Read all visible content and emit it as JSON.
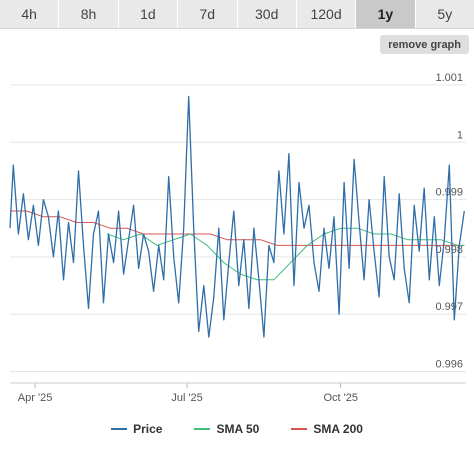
{
  "tabs": [
    {
      "label": "4h",
      "active": false
    },
    {
      "label": "8h",
      "active": false
    },
    {
      "label": "1d",
      "active": false
    },
    {
      "label": "7d",
      "active": false
    },
    {
      "label": "30d",
      "active": false
    },
    {
      "label": "120d",
      "active": false
    },
    {
      "label": "1y",
      "active": true
    },
    {
      "label": "5y",
      "active": false
    }
  ],
  "remove_graph_label": "remove graph",
  "colors": {
    "price": "#2f6ea8",
    "sma50": "#3dbe7a",
    "sma200": "#d9534f",
    "grid": "#e6e6e6"
  },
  "chart_data": {
    "type": "line",
    "ylim": [
      0.9958,
      1.0014
    ],
    "y_ticks": [
      {
        "value": 1.001,
        "label": "1.001"
      },
      {
        "value": 1.0,
        "label": "1"
      },
      {
        "value": 0.999,
        "label": "0.999"
      },
      {
        "value": 0.998,
        "label": "0.998"
      },
      {
        "value": 0.997,
        "label": "0.997"
      },
      {
        "value": 0.996,
        "label": "0.996"
      }
    ],
    "x_range": [
      "2025-03-17",
      "2025-12-15"
    ],
    "x_ticks": [
      {
        "date": "2025-04-01",
        "label": "Apr '25"
      },
      {
        "date": "2025-07-01",
        "label": "Jul '25"
      },
      {
        "date": "2025-10-01",
        "label": "Oct '25"
      }
    ],
    "legend": [
      "Price",
      "SMA 50",
      "SMA 200"
    ],
    "series": [
      {
        "name": "Price",
        "x": [
          "2025-03-17",
          "2025-03-19",
          "2025-03-22",
          "2025-03-25",
          "2025-03-28",
          "2025-03-31",
          "2025-04-03",
          "2025-04-06",
          "2025-04-09",
          "2025-04-12",
          "2025-04-15",
          "2025-04-18",
          "2025-04-21",
          "2025-04-24",
          "2025-04-27",
          "2025-04-30",
          "2025-05-03",
          "2025-05-06",
          "2025-05-09",
          "2025-05-12",
          "2025-05-15",
          "2025-05-18",
          "2025-05-21",
          "2025-05-24",
          "2025-05-27",
          "2025-05-30",
          "2025-06-02",
          "2025-06-05",
          "2025-06-08",
          "2025-06-11",
          "2025-06-14",
          "2025-06-17",
          "2025-06-20",
          "2025-06-23",
          "2025-06-26",
          "2025-06-29",
          "2025-07-02",
          "2025-07-05",
          "2025-07-08",
          "2025-07-11",
          "2025-07-14",
          "2025-07-17",
          "2025-07-20",
          "2025-07-23",
          "2025-07-26",
          "2025-07-29",
          "2025-08-01",
          "2025-08-04",
          "2025-08-07",
          "2025-08-10",
          "2025-08-13",
          "2025-08-16",
          "2025-08-19",
          "2025-08-22",
          "2025-08-25",
          "2025-08-28",
          "2025-08-31",
          "2025-09-03",
          "2025-09-06",
          "2025-09-09",
          "2025-09-12",
          "2025-09-15",
          "2025-09-18",
          "2025-09-21",
          "2025-09-24",
          "2025-09-27",
          "2025-09-30",
          "2025-10-03",
          "2025-10-06",
          "2025-10-09",
          "2025-10-12",
          "2025-10-15",
          "2025-10-18",
          "2025-10-21",
          "2025-10-24",
          "2025-10-27",
          "2025-10-30",
          "2025-11-02",
          "2025-11-05",
          "2025-11-08",
          "2025-11-11",
          "2025-11-14",
          "2025-11-17",
          "2025-11-20",
          "2025-11-23",
          "2025-11-26",
          "2025-11-29",
          "2025-12-02",
          "2025-12-05",
          "2025-12-08",
          "2025-12-11",
          "2025-12-14"
        ],
        "y": [
          0.9985,
          0.9996,
          0.9984,
          0.9991,
          0.9983,
          0.9989,
          0.9982,
          0.999,
          0.9987,
          0.998,
          0.9988,
          0.9976,
          0.9986,
          0.9979,
          0.9995,
          0.9982,
          0.9971,
          0.9984,
          0.9988,
          0.9972,
          0.9984,
          0.9979,
          0.9988,
          0.9977,
          0.9983,
          0.9989,
          0.9978,
          0.9984,
          0.9981,
          0.9974,
          0.9982,
          0.9976,
          0.9994,
          0.998,
          0.9972,
          0.9985,
          1.0008,
          0.9985,
          0.9967,
          0.9975,
          0.9966,
          0.9973,
          0.9985,
          0.9969,
          0.9979,
          0.9988,
          0.9975,
          0.9983,
          0.9971,
          0.9985,
          0.9976,
          0.9966,
          0.9982,
          0.9979,
          0.9995,
          0.9984,
          0.9998,
          0.9975,
          0.9993,
          0.9985,
          0.9989,
          0.9979,
          0.9974,
          0.9985,
          0.9978,
          0.9987,
          0.997,
          0.9993,
          0.9978,
          0.9997,
          0.9986,
          0.9976,
          0.999,
          0.9981,
          0.9973,
          0.9994,
          0.998,
          0.9976,
          0.9991,
          0.9978,
          0.9972,
          0.9989,
          0.9981,
          0.9992,
          0.9976,
          0.9987,
          0.9975,
          0.9983,
          0.9996,
          0.9969,
          0.9982,
          0.9988
        ]
      },
      {
        "name": "SMA 50",
        "x": [
          "2025-05-14",
          "2025-05-24",
          "2025-06-03",
          "2025-06-13",
          "2025-06-23",
          "2025-07-03",
          "2025-07-13",
          "2025-07-23",
          "2025-08-02",
          "2025-08-12",
          "2025-08-22",
          "2025-09-01",
          "2025-09-11",
          "2025-09-21",
          "2025-10-01",
          "2025-10-11",
          "2025-10-21",
          "2025-10-31",
          "2025-11-10",
          "2025-11-20",
          "2025-11-30",
          "2025-12-10",
          "2025-12-14"
        ],
        "y": [
          0.9984,
          0.9983,
          0.9984,
          0.9982,
          0.9983,
          0.9984,
          0.9982,
          0.9979,
          0.9977,
          0.9976,
          0.9976,
          0.9979,
          0.9982,
          0.9984,
          0.9985,
          0.9985,
          0.9984,
          0.9984,
          0.9983,
          0.9983,
          0.9983,
          0.9982,
          0.9982
        ]
      },
      {
        "name": "SMA 200",
        "x": [
          "2025-03-17",
          "2025-03-27",
          "2025-04-06",
          "2025-04-16",
          "2025-04-26",
          "2025-05-06",
          "2025-05-16",
          "2025-05-26",
          "2025-06-05",
          "2025-06-15",
          "2025-06-25",
          "2025-07-05",
          "2025-07-15",
          "2025-07-25",
          "2025-08-04",
          "2025-08-14",
          "2025-08-24",
          "2025-09-03",
          "2025-09-13",
          "2025-09-23",
          "2025-10-03",
          "2025-10-13",
          "2025-10-23",
          "2025-11-02",
          "2025-11-12",
          "2025-11-22",
          "2025-12-02",
          "2025-12-14"
        ],
        "y": [
          0.9988,
          0.9988,
          0.9987,
          0.9987,
          0.9986,
          0.9986,
          0.9985,
          0.9985,
          0.9984,
          0.9984,
          0.9984,
          0.9984,
          0.9984,
          0.9983,
          0.9983,
          0.9983,
          0.9982,
          0.9982,
          0.9982,
          0.9982,
          0.9982,
          0.9982,
          0.9982,
          0.9982,
          0.9982,
          0.9982,
          0.9982,
          0.9982
        ]
      }
    ]
  }
}
